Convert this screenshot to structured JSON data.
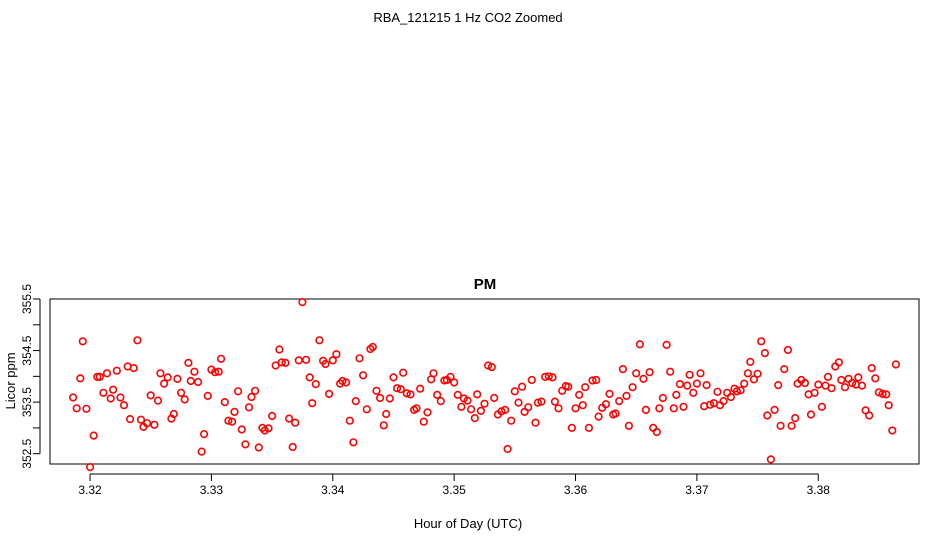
{
  "page": {
    "title": "RBA_121215  1 Hz CO2 Zoomed"
  },
  "chart_data": {
    "type": "scatter",
    "title": "PM",
    "xlabel": "Hour of Day (UTC)",
    "ylabel": "Licor ppm",
    "xlim": [
      3.3167,
      3.3883
    ],
    "ylim": [
      352.3,
      355.5
    ],
    "x_ticks": [
      3.32,
      3.33,
      3.34,
      3.35,
      3.36,
      3.37,
      3.38
    ],
    "x_tick_labels": [
      "3.32",
      "3.33",
      "3.34",
      "3.35",
      "3.36",
      "3.37",
      "3.38"
    ],
    "y_ticks": [
      352.5,
      353.5,
      354.5,
      355.5
    ],
    "y_tick_labels": [
      "352.5",
      "353.5",
      "354.5",
      "355.5"
    ],
    "grid": false,
    "legend": "none",
    "marker": "open-circle",
    "color": "#ff0000",
    "series": [
      {
        "x": [
          3.3186,
          3.3189,
          3.3192,
          3.3194,
          3.3197,
          3.32,
          3.3203,
          3.3206,
          3.3208,
          3.3211,
          3.3214,
          3.3217,
          3.3219,
          3.3222,
          3.3225,
          3.3228,
          3.3231,
          3.3233,
          3.3236,
          3.3239,
          3.3242,
          3.3244,
          3.3247,
          3.325,
          3.3253,
          3.3256,
          3.3258,
          3.3261,
          3.3264,
          3.3267,
          3.3269,
          3.3272,
          3.3275,
          3.3278,
          3.3281,
          3.3283,
          3.3286,
          3.3289,
          3.3292,
          3.3294,
          3.3297,
          3.33,
          3.3303,
          3.3306,
          3.3308,
          3.3311,
          3.3314,
          3.3317,
          3.3319,
          3.3322,
          3.3325,
          3.3328,
          3.3331,
          3.3333,
          3.3336,
          3.3339,
          3.3342,
          3.3344,
          3.3347,
          3.335,
          3.3353,
          3.3356,
          3.3358,
          3.3361,
          3.3364,
          3.3367,
          3.3369,
          3.3372,
          3.3375,
          3.3378,
          3.3381,
          3.3383,
          3.3386,
          3.3389,
          3.3392,
          3.3394,
          3.3397,
          3.34,
          3.3403,
          3.3406,
          3.3408,
          3.3411,
          3.3414,
          3.3417,
          3.3419,
          3.3422,
          3.3425,
          3.3428,
          3.3431,
          3.3433,
          3.3436,
          3.3439,
          3.3442,
          3.3444,
          3.3447,
          3.345,
          3.3453,
          3.3456,
          3.3458,
          3.3461,
          3.3464,
          3.3467,
          3.3469,
          3.3472,
          3.3475,
          3.3478,
          3.3481,
          3.3483,
          3.3486,
          3.3489,
          3.3492,
          3.3494,
          3.3497,
          3.35,
          3.3503,
          3.3506,
          3.3508,
          3.3511,
          3.3514,
          3.3517,
          3.3519,
          3.3522,
          3.3525,
          3.3528,
          3.3531,
          3.3533,
          3.3536,
          3.3539,
          3.3542,
          3.3544,
          3.3547,
          3.355,
          3.3553,
          3.3556,
          3.3558,
          3.3561,
          3.3564,
          3.3567,
          3.3569,
          3.3572,
          3.3575,
          3.3578,
          3.3581,
          3.3583,
          3.3586,
          3.3589,
          3.3592,
          3.3594,
          3.3597,
          3.36,
          3.3603,
          3.3606,
          3.3608,
          3.3611,
          3.3614,
          3.3617,
          3.3619,
          3.3622,
          3.3625,
          3.3628,
          3.3631,
          3.3633,
          3.3636,
          3.3639,
          3.3642,
          3.3644,
          3.3647,
          3.365,
          3.3653,
          3.3656,
          3.3658,
          3.3661,
          3.3664,
          3.3667,
          3.3669,
          3.3672,
          3.3675,
          3.3678,
          3.3681,
          3.3683,
          3.3686,
          3.3689,
          3.3692,
          3.3694,
          3.3697,
          3.37,
          3.3703,
          3.3706,
          3.3708,
          3.3711,
          3.3714,
          3.3717,
          3.3719,
          3.3722,
          3.3725,
          3.3728,
          3.3731,
          3.3733,
          3.3736,
          3.3739,
          3.3742,
          3.3744,
          3.3747,
          3.375,
          3.3753,
          3.3756,
          3.3758,
          3.3761,
          3.3764,
          3.3767,
          3.3769,
          3.3772,
          3.3775,
          3.3778,
          3.3781,
          3.3783,
          3.3786,
          3.3789,
          3.3792,
          3.3794,
          3.3797,
          3.38,
          3.3803,
          3.3806,
          3.3808,
          3.3811,
          3.3814,
          3.3817,
          3.3819,
          3.3822,
          3.3825,
          3.3828,
          3.3831,
          3.3833,
          3.3836,
          3.3839,
          3.3842,
          3.3844,
          3.3847,
          3.385,
          3.3853,
          3.3856,
          3.3858,
          3.3861,
          3.3864
        ],
        "y": [
          353.59,
          353.38,
          353.96,
          354.68,
          353.37,
          352.24,
          352.85,
          353.99,
          353.99,
          353.68,
          354.06,
          353.57,
          353.74,
          354.11,
          353.59,
          353.44,
          354.19,
          353.17,
          354.16,
          354.7,
          353.16,
          353.02,
          353.09,
          353.63,
          353.06,
          353.53,
          354.06,
          353.86,
          353.98,
          353.18,
          353.27,
          353.95,
          353.68,
          353.55,
          354.26,
          353.91,
          354.09,
          353.89,
          352.54,
          352.88,
          353.62,
          354.13,
          354.08,
          354.09,
          354.34,
          353.5,
          353.14,
          353.12,
          353.31,
          353.71,
          352.97,
          352.68,
          353.4,
          353.6,
          353.72,
          352.62,
          353.0,
          352.95,
          352.99,
          353.23,
          354.21,
          354.52,
          354.27,
          354.26,
          353.18,
          352.63,
          353.1,
          354.31,
          355.44,
          354.32,
          353.98,
          353.48,
          353.85,
          354.7,
          354.3,
          354.24,
          353.66,
          354.31,
          354.43,
          353.86,
          353.91,
          353.88,
          353.14,
          352.72,
          353.52,
          354.35,
          354.02,
          353.36,
          354.53,
          354.57,
          353.72,
          353.58,
          353.05,
          353.27,
          353.57,
          353.98,
          353.77,
          353.75,
          354.07,
          353.67,
          353.65,
          353.35,
          353.38,
          353.76,
          353.12,
          353.3,
          353.94,
          354.06,
          353.64,
          353.52,
          353.92,
          353.93,
          353.99,
          353.88,
          353.64,
          353.41,
          353.57,
          353.53,
          353.36,
          353.19,
          353.65,
          353.33,
          353.47,
          354.21,
          354.18,
          353.58,
          353.26,
          353.32,
          353.35,
          352.59,
          353.14,
          353.71,
          353.49,
          353.8,
          353.31,
          353.4,
          353.93,
          353.1,
          353.49,
          353.51,
          353.99,
          354.0,
          353.98,
          353.51,
          353.38,
          353.72,
          353.81,
          353.8,
          353.0,
          353.38,
          353.64,
          353.44,
          353.79,
          353.0,
          353.92,
          353.93,
          353.22,
          353.39,
          353.46,
          353.66,
          353.26,
          353.28,
          353.52,
          354.14,
          353.62,
          353.04,
          353.79,
          354.06,
          354.62,
          353.95,
          353.35,
          354.08,
          353.0,
          352.92,
          353.38,
          353.58,
          354.61,
          354.09,
          353.38,
          353.64,
          353.85,
          353.41,
          353.82,
          354.03,
          353.68,
          353.86,
          354.06,
          353.42,
          353.83,
          353.45,
          353.48,
          353.7,
          353.44,
          353.52,
          353.68,
          353.6,
          353.76,
          353.71,
          353.73,
          353.86,
          354.06,
          354.28,
          353.94,
          354.05,
          354.68,
          354.45,
          353.24,
          352.39,
          353.35,
          353.83,
          353.04,
          354.14,
          354.51,
          353.04,
          353.19,
          353.86,
          353.93,
          353.87,
          353.65,
          353.26,
          353.68,
          353.84,
          353.41,
          353.82,
          353.99,
          353.77,
          354.19,
          354.27,
          353.93,
          353.79,
          353.95,
          353.87,
          353.84,
          353.98,
          353.82,
          353.34,
          353.24,
          354.16,
          353.96,
          353.69,
          353.66,
          353.65,
          353.44,
          352.95,
          354.23
        ]
      }
    ]
  }
}
